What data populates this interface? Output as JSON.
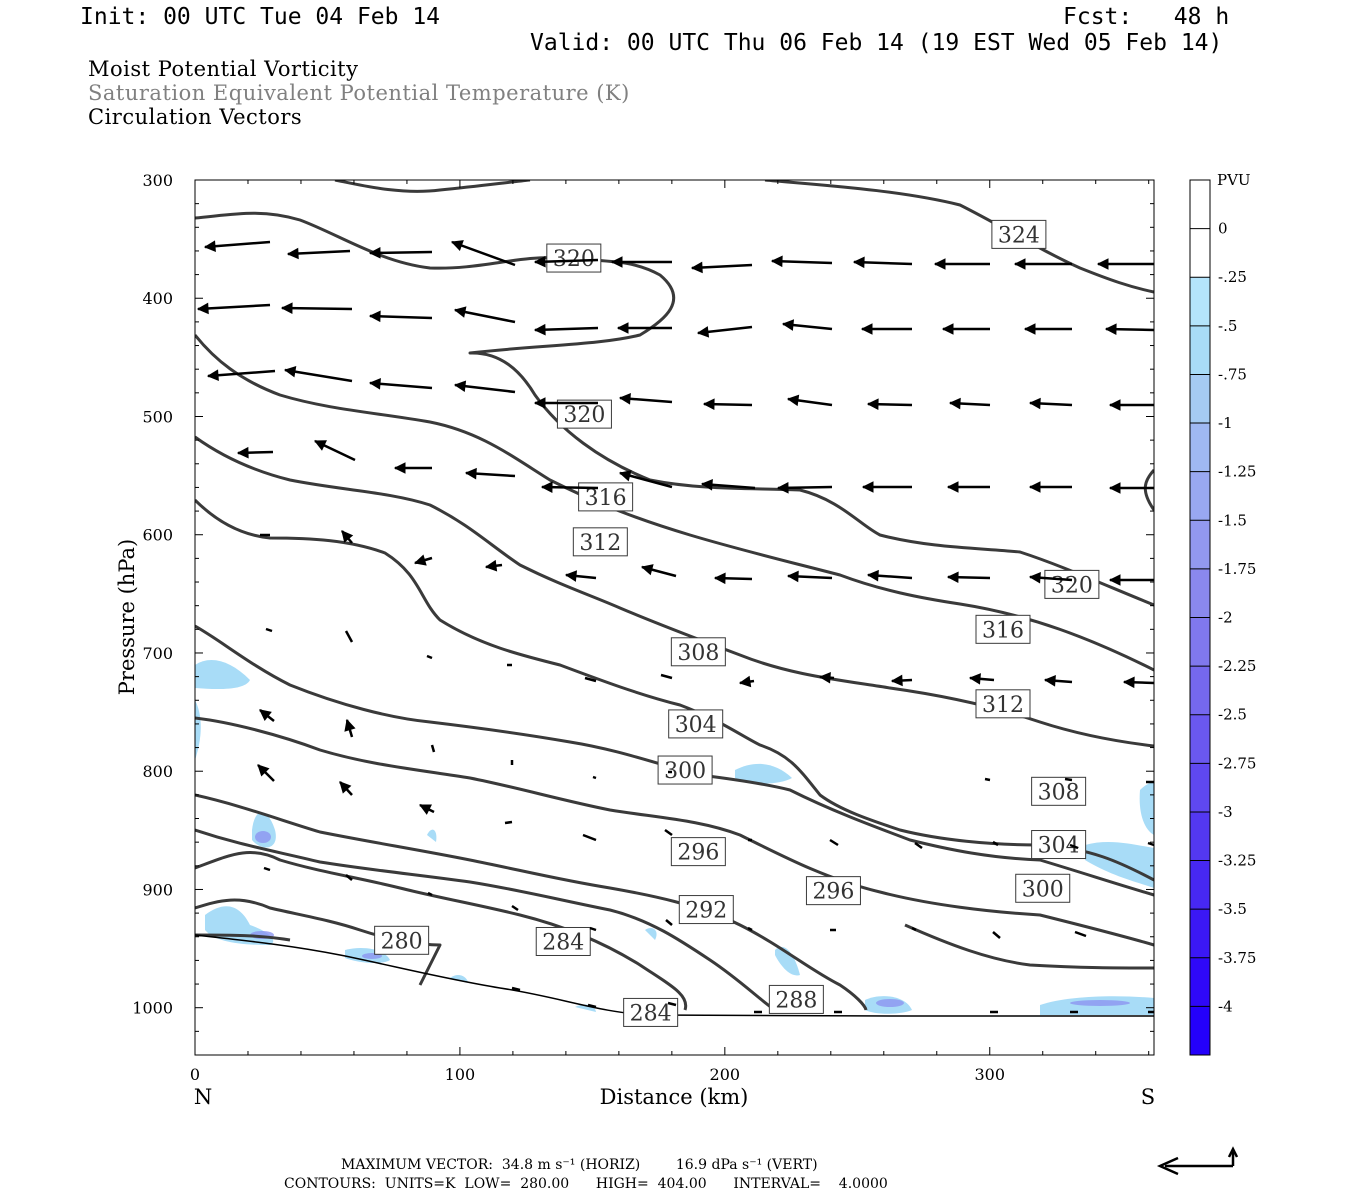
{
  "header": {
    "init": "Init: 00 UTC Tue 04 Feb 14",
    "fcst": "Fcst:   48 h",
    "valid": "Valid: 00 UTC Thu 06 Feb 14 (19 EST Wed 05 Feb 14)"
  },
  "legend_titles": {
    "line1": "Moist Potential Vorticity",
    "line2": "Saturation Equivalent Potential Temperature (K)",
    "line3": "Circulation Vectors"
  },
  "footer": {
    "max_vector": "MAXIMUM VECTOR:  34.8 m s⁻¹ (HORIZ)        16.9 dPa s⁻¹ (VERT)",
    "contours": "CONTOURS:  UNITS=K  LOW=  280.00      HIGH=  404.00      INTERVAL=    4.0000"
  },
  "colors": {
    "contour": "#3a3a3a",
    "vector": "#000000",
    "pv_light": "#a8dcf7"
  },
  "chart_data": {
    "type": "cross-section",
    "xlabel": "Distance (km)",
    "ylabel": "Pressure (hPa)",
    "xlim": [
      0,
      362
    ],
    "ylim": [
      1040,
      300
    ],
    "x_ticks": [
      0,
      100,
      200,
      300
    ],
    "y_ticks": [
      300,
      400,
      500,
      600,
      700,
      800,
      900,
      1000
    ],
    "x_end_labels": {
      "left": "N",
      "right": "S"
    },
    "colorbar": {
      "title": "PVU",
      "labels": [
        "0",
        "-.25",
        "-.5",
        "-.75",
        "-1",
        "-1.25",
        "-1.5",
        "-1.75",
        "-2",
        "-2.25",
        "-2.5",
        "-2.75",
        "-3",
        "-3.25",
        "-3.5",
        "-3.75",
        "-4"
      ],
      "colors": [
        "#ffffff",
        "#ffffff",
        "#b4e4fb",
        "#a8dcf7",
        "#a5cbf3",
        "#9fb8f2",
        "#99a8f1",
        "#9298ef",
        "#8a88ee",
        "#8078ee",
        "#7568ee",
        "#6a58ef",
        "#5f48f0",
        "#5338f1",
        "#4728f3",
        "#3b18f5",
        "#2f08f8",
        "#2400fb"
      ]
    },
    "contour_labels": [
      {
        "text": "324",
        "x": 311,
        "p": 346
      },
      {
        "text": "320",
        "x": 143,
        "p": 366
      },
      {
        "text": "320",
        "x": 147,
        "p": 498
      },
      {
        "text": "316",
        "x": 155,
        "p": 568
      },
      {
        "text": "312",
        "x": 153,
        "p": 606
      },
      {
        "text": "320",
        "x": 331,
        "p": 642
      },
      {
        "text": "316",
        "x": 305,
        "p": 680
      },
      {
        "text": "308",
        "x": 190,
        "p": 699
      },
      {
        "text": "312",
        "x": 305,
        "p": 743
      },
      {
        "text": "304",
        "x": 189,
        "p": 760
      },
      {
        "text": "300",
        "x": 185,
        "p": 799
      },
      {
        "text": "308",
        "x": 326,
        "p": 817
      },
      {
        "text": "304",
        "x": 326,
        "p": 862
      },
      {
        "text": "296",
        "x": 190,
        "p": 868
      },
      {
        "text": "296",
        "x": 241,
        "p": 901
      },
      {
        "text": "300",
        "x": 320,
        "p": 899
      },
      {
        "text": "292",
        "x": 193,
        "p": 917
      },
      {
        "text": "280",
        "x": 78,
        "p": 943
      },
      {
        "text": "284",
        "x": 139,
        "p": 944
      },
      {
        "text": "288",
        "x": 227,
        "p": 993
      },
      {
        "text": "284",
        "x": 172,
        "p": 1004
      }
    ]
  }
}
